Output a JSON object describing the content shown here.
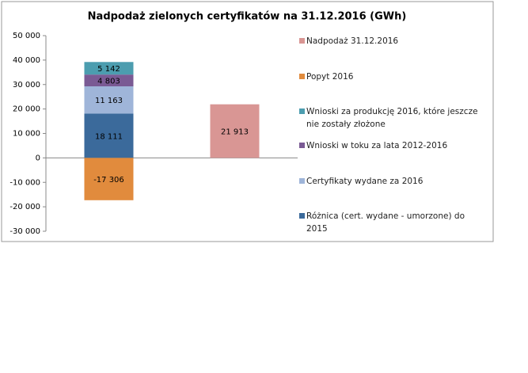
{
  "chart_data": {
    "type": "bar",
    "stacked": true,
    "title": "Nadpodaż zielonych certyfikatów na 31.12.2016 (GWh)",
    "categories": [
      null,
      null
    ],
    "ylim": [
      -30000,
      50000
    ],
    "yticks": [
      {
        "value": -30000,
        "label": "-30 000"
      },
      {
        "value": -20000,
        "label": "-20 000"
      },
      {
        "value": -10000,
        "label": "-10 000"
      },
      0,
      {
        "value": 10000,
        "label": "10 000"
      },
      {
        "value": 20000,
        "label": "20 000"
      },
      {
        "value": 30000,
        "label": "30 000"
      },
      {
        "value": 40000,
        "label": "40 000"
      },
      {
        "value": 50000,
        "label": "50 000"
      }
    ],
    "grid": false,
    "legend": "right",
    "series": [
      {
        "name": "Różnica (cert. wydane - umorzone) do 2015",
        "color": "#3b6a9b",
        "values": [
          18111,
          null
        ],
        "value_labels": [
          "18 111",
          null
        ]
      },
      {
        "name": "Certyfikaty wydane za 2016",
        "color": "#9fb5d9",
        "values": [
          11163,
          null
        ],
        "value_labels": [
          "11 163",
          null
        ]
      },
      {
        "name": "Wnioski w toku za lata 2012-2016",
        "color": "#7a5a94",
        "values": [
          4803,
          null
        ],
        "value_labels": [
          "4 803",
          null
        ]
      },
      {
        "name": "Wnioski za produkcję 2016, które jeszcze nie zostały złożone",
        "color": "#4c9daf",
        "values": [
          5142,
          null
        ],
        "value_labels": [
          "5 142",
          null
        ]
      },
      {
        "name": "Popyt 2016",
        "color": "#e18b3d",
        "values": [
          -17306,
          null
        ],
        "value_labels": [
          "-17 306",
          null
        ]
      },
      {
        "name": "Nadpodaż 31.12.2016",
        "color": "#d99694",
        "values": [
          null,
          21913
        ],
        "value_labels": [
          null,
          "21 913"
        ]
      }
    ]
  }
}
